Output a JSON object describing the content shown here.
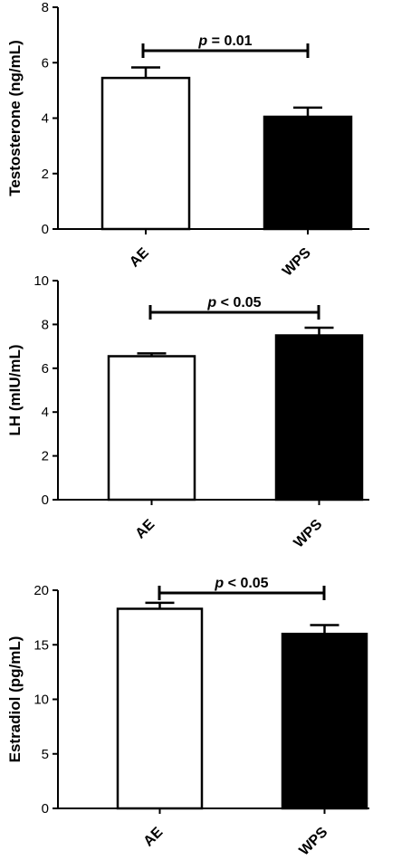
{
  "colors": {
    "bar_ae": "#ffffff",
    "bar_wps": "#000000",
    "outline": "#000000"
  },
  "chart_data": [
    {
      "type": "bar",
      "title": "",
      "xlabel": "",
      "ylabel": "Testosterone (ng/mL)",
      "categories": [
        "AE",
        "WPS"
      ],
      "values": [
        5.45,
        4.05
      ],
      "error": [
        0.38,
        0.33
      ],
      "ylim": [
        0,
        8
      ],
      "yticks": [
        "0",
        "2",
        "4",
        "6",
        "8"
      ],
      "significance": {
        "prefix": "p",
        "text": " = 0.01"
      }
    },
    {
      "type": "bar",
      "title": "",
      "xlabel": "",
      "ylabel": "LH (mIU/mL)",
      "categories": [
        "AE",
        "WPS"
      ],
      "values": [
        6.55,
        7.5
      ],
      "error": [
        0.13,
        0.35
      ],
      "ylim": [
        0,
        10
      ],
      "yticks": [
        "0",
        "2",
        "4",
        "6",
        "8",
        "10"
      ],
      "significance": {
        "prefix": "p",
        "text": " < 0.05"
      }
    },
    {
      "type": "bar",
      "title": "",
      "xlabel": "",
      "ylabel": "Estradiol (pg/mL)",
      "categories": [
        "AE",
        "WPS"
      ],
      "values": [
        18.3,
        16.0
      ],
      "error": [
        0.55,
        0.8
      ],
      "ylim": [
        0,
        20
      ],
      "yticks": [
        "0",
        "5",
        "10",
        "15",
        "20"
      ],
      "significance": {
        "prefix": "p",
        "text": " < 0.05"
      }
    }
  ]
}
